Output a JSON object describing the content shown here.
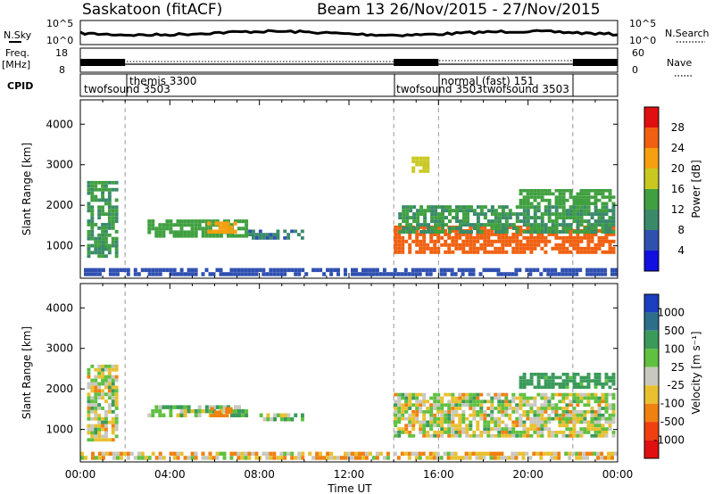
{
  "header": {
    "station": "Saskatoon (fitACF)",
    "beam_date": "Beam 13  26/Nov/2015 - 27/Nov/2015"
  },
  "top_panels": {
    "nsky_label": "N.Sky",
    "nsearch_label": "N.Search",
    "noise_ticks": [
      "10^5",
      "10^0"
    ],
    "freq_label_1": "Freq.",
    "freq_label_2": "[MHz]",
    "freq_ticks": [
      "18",
      "8"
    ],
    "nave_label": "Nave",
    "nave_ticks": [
      "60",
      "0"
    ],
    "cpid_label": "CPID",
    "cpid_segments": [
      {
        "label": "twofsound 3503",
        "start_hour": 0,
        "end_hour": 2
      },
      {
        "label": "themis 3300",
        "start_hour": 2,
        "end_hour": 14
      },
      {
        "label": "twofsound 3503",
        "start_hour": 14,
        "end_hour": 16
      },
      {
        "label": "normal (fast) 151",
        "start_hour": 16,
        "end_hour": 22
      },
      {
        "label": "twofsound 3503",
        "start_hour": 18.5,
        "end_hour": 22
      }
    ]
  },
  "axes": {
    "xlabel": "Time UT",
    "ylabel": "Slant Range [km]",
    "xticks": [
      "00:00",
      "04:00",
      "08:00",
      "12:00",
      "16:00",
      "20:00",
      "00:00"
    ],
    "yticks": [
      "1000",
      "2000",
      "3000",
      "4000"
    ]
  },
  "power_colorbar": {
    "title": "Power [dB]",
    "ticks": [
      "4",
      "8",
      "12",
      "16",
      "20",
      "24",
      "28"
    ],
    "colors": [
      "#1010e0",
      "#3050b0",
      "#3a8a6a",
      "#40a040",
      "#c8c820",
      "#f5a010",
      "#f06010",
      "#e01010"
    ]
  },
  "velocity_colorbar": {
    "title": "Velocity [m s⁻¹]",
    "ticks": [
      "1000",
      "500",
      "100",
      "25",
      "-25",
      "-100",
      "-500",
      "-1000"
    ],
    "colors": [
      "#1a3fc0",
      "#2d6f8a",
      "#3a9a5a",
      "#60c040",
      "#c8c8c0",
      "#e8c030",
      "#f08010",
      "#f04010",
      "#e01010"
    ]
  },
  "chart_data": [
    {
      "type": "heatmap",
      "title": "Power",
      "xlabel": "Time UT",
      "ylabel": "Slant Range [km]",
      "xlim_hours": [
        0,
        24
      ],
      "ylim": [
        200,
        4600
      ],
      "clim": [
        0,
        32
      ],
      "vertical_markers_hours": [
        2,
        14,
        16,
        22
      ],
      "patches": [
        {
          "t0": 0.3,
          "t1": 1.7,
          "r0": 700,
          "r1": 2600,
          "value": 12
        },
        {
          "t0": 3.0,
          "t1": 7.5,
          "r0": 1200,
          "r1": 1650,
          "value": 14
        },
        {
          "t0": 5.5,
          "t1": 7.0,
          "r0": 1300,
          "r1": 1600,
          "value": 22
        },
        {
          "t0": 7.5,
          "t1": 10.0,
          "r0": 1150,
          "r1": 1400,
          "value": 9
        },
        {
          "t0": 14.0,
          "t1": 23.9,
          "r0": 800,
          "r1": 1500,
          "value": 26
        },
        {
          "t0": 14.2,
          "t1": 23.9,
          "r0": 1300,
          "r1": 2000,
          "value": 12
        },
        {
          "t0": 14.8,
          "t1": 15.6,
          "r0": 2800,
          "r1": 3200,
          "value": 18
        },
        {
          "t0": 19.6,
          "t1": 23.9,
          "r0": 2000,
          "r1": 2400,
          "value": 14
        },
        {
          "t0": 0.0,
          "t1": 24.0,
          "r0": 250,
          "r1": 450,
          "value": 6
        }
      ]
    },
    {
      "type": "heatmap",
      "title": "Velocity",
      "xlabel": "Time UT",
      "ylabel": "Slant Range [km]",
      "xlim_hours": [
        0,
        24
      ],
      "ylim": [
        200,
        4600
      ],
      "clim": [
        -1000,
        1000
      ],
      "vertical_markers_hours": [
        2,
        14,
        16,
        22
      ],
      "patches": [
        {
          "t0": 0.3,
          "t1": 1.7,
          "r0": 700,
          "r1": 2600,
          "value": 0
        },
        {
          "t0": 3.0,
          "t1": 7.5,
          "r0": 1300,
          "r1": 1600,
          "value": 60
        },
        {
          "t0": 5.8,
          "t1": 6.8,
          "r0": 1300,
          "r1": 1550,
          "value": -300
        },
        {
          "t0": 8.0,
          "t1": 10.0,
          "r0": 1200,
          "r1": 1400,
          "value": 40
        },
        {
          "t0": 14.0,
          "t1": 23.9,
          "r0": 800,
          "r1": 1900,
          "value": 0
        },
        {
          "t0": 19.6,
          "t1": 23.9,
          "r0": 2000,
          "r1": 2400,
          "value": 200
        },
        {
          "t0": 0.0,
          "t1": 24.0,
          "r0": 250,
          "r1": 450,
          "value": -60
        }
      ]
    }
  ]
}
